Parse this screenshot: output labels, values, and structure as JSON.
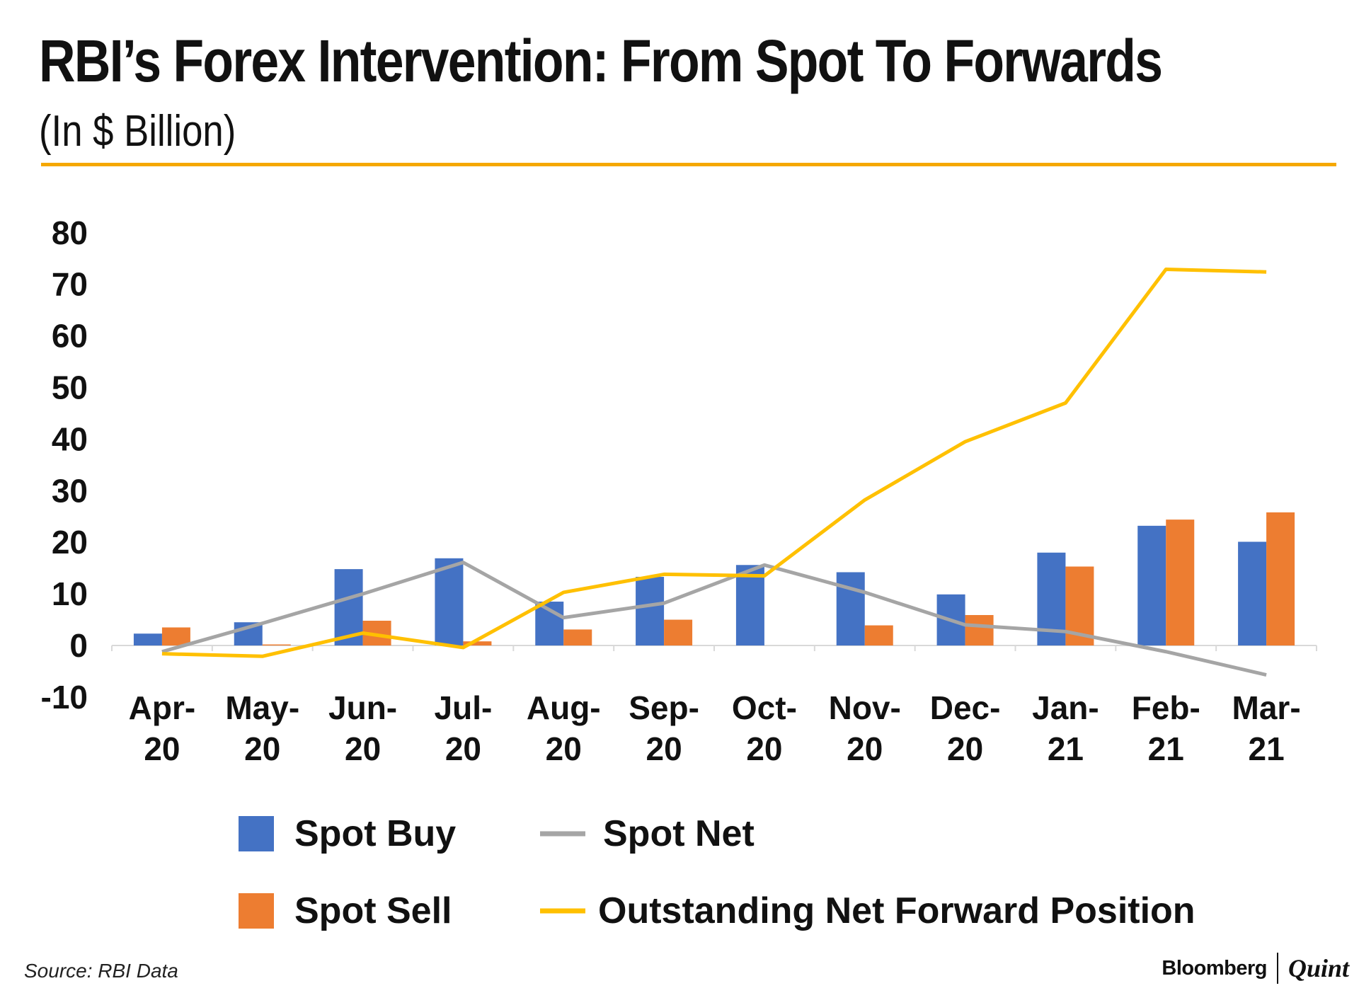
{
  "header": {
    "title": "RBI’s Forex Intervention: From Spot To Forwards",
    "subtitle": "(In $ Billion)"
  },
  "footer": {
    "source": "Source: RBI Data",
    "brand_left": "Bloomberg",
    "brand_right": "Quint"
  },
  "colors": {
    "accent_rule": "#F5A800",
    "spot_buy": "#4472C4",
    "spot_sell": "#ED7D31",
    "spot_net": "#A5A5A5",
    "forward": "#FFC000",
    "axis": "#D9D9D9"
  },
  "chart_data": {
    "type": "bar",
    "title": "RBI’s Forex Intervention: From Spot To Forwards",
    "subtitle": "(In $ Billion)",
    "categories": [
      "Apr-20",
      "May-20",
      "Jun-20",
      "Jul-20",
      "Aug-20",
      "Sep-20",
      "Oct-20",
      "Nov-20",
      "Dec-20",
      "Jan-21",
      "Feb-21",
      "Mar-21"
    ],
    "category_labels": [
      [
        "Apr-",
        "20"
      ],
      [
        "May-",
        "20"
      ],
      [
        "Jun-",
        "20"
      ],
      [
        "Jul-",
        "20"
      ],
      [
        "Aug-",
        "20"
      ],
      [
        "Sep-",
        "20"
      ],
      [
        "Oct-",
        "20"
      ],
      [
        "Nov-",
        "20"
      ],
      [
        "Dec-",
        "20"
      ],
      [
        "Jan-",
        "21"
      ],
      [
        "Feb-",
        "21"
      ],
      [
        "Mar-",
        "21"
      ]
    ],
    "ylim": [
      -10,
      80
    ],
    "yticks": [
      80,
      70,
      60,
      50,
      40,
      30,
      20,
      10,
      0,
      -10
    ],
    "xlabel": "",
    "ylabel": "",
    "grid": false,
    "legend_position": "bottom",
    "series": [
      {
        "name": "Spot Buy",
        "kind": "bar",
        "color": "#4472C4",
        "values": [
          2.3,
          4.5,
          14.8,
          16.9,
          8.5,
          13.3,
          15.6,
          14.2,
          9.9,
          18.0,
          23.2,
          20.1
        ]
      },
      {
        "name": "Spot Sell",
        "kind": "bar",
        "color": "#ED7D31",
        "values": [
          3.5,
          0.2,
          4.8,
          0.8,
          3.1,
          5.0,
          0.0,
          3.9,
          5.9,
          15.3,
          24.4,
          25.8
        ]
      },
      {
        "name": "Spot Net",
        "kind": "line",
        "color": "#A5A5A5",
        "values": [
          -1.2,
          4.3,
          10.0,
          16.1,
          5.4,
          8.2,
          15.6,
          10.3,
          4.0,
          2.7,
          -1.2,
          -5.7
        ]
      },
      {
        "name": "Outstanding Net Forward Position",
        "kind": "line",
        "color": "#FFC000",
        "values": [
          -1.6,
          -2.1,
          2.4,
          -0.4,
          10.3,
          13.8,
          13.5,
          28.2,
          39.5,
          47.0,
          72.9,
          72.4
        ]
      }
    ]
  }
}
